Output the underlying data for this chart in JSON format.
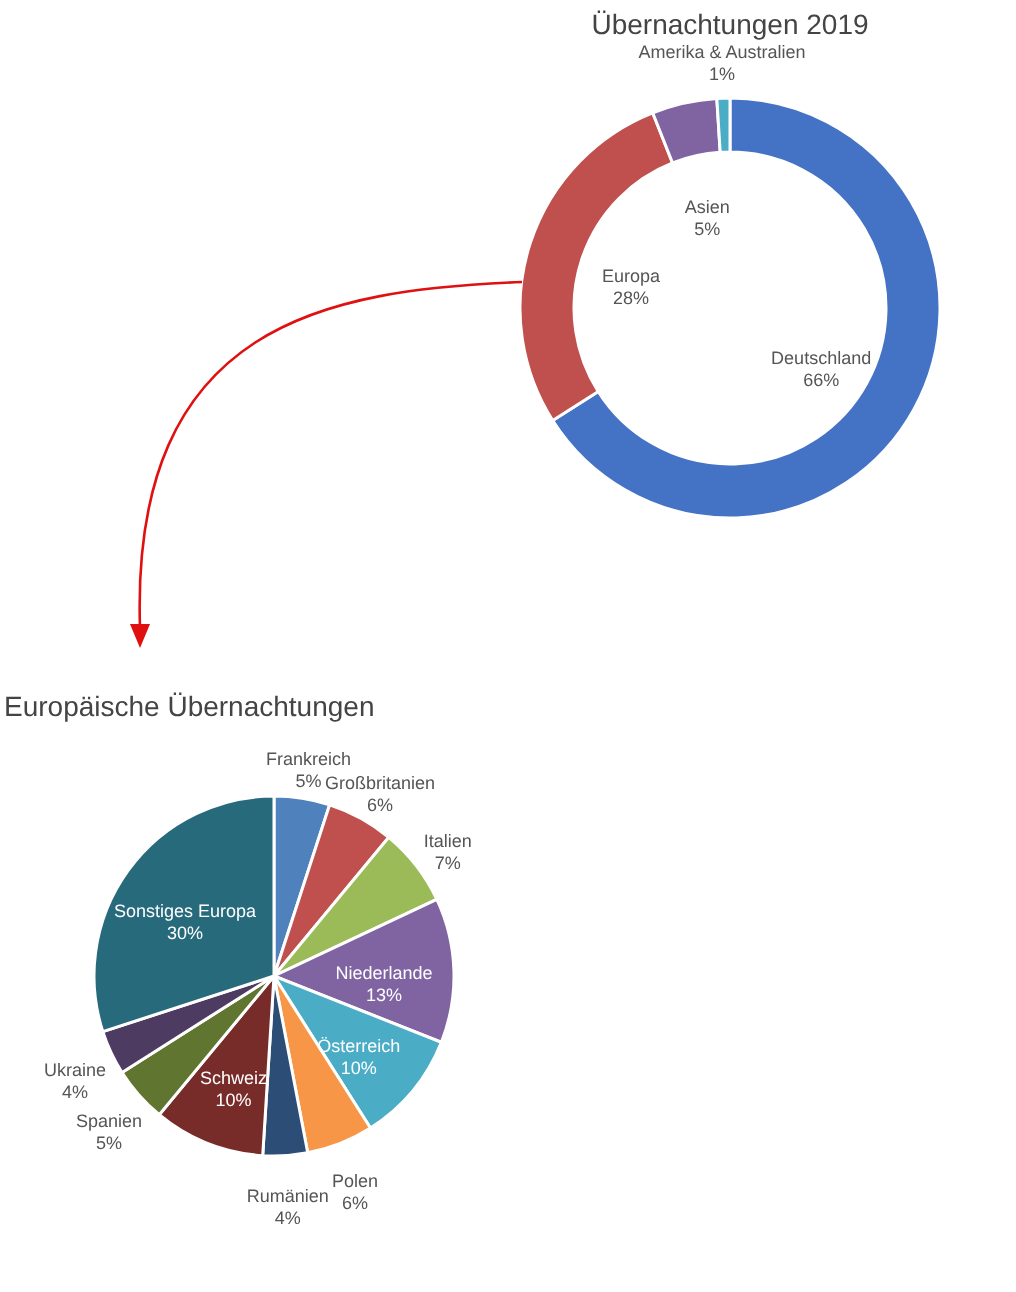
{
  "chart_data": [
    {
      "type": "donut",
      "title": "Übernachtungen 2019",
      "categories": [
        "Deutschland",
        "Europa",
        "Asien",
        "Amerika & Australien"
      ],
      "values": [
        66,
        28,
        5,
        1
      ],
      "colors": [
        "#4472c4",
        "#c0504d",
        "#8064a2",
        "#4bacc6"
      ],
      "value_labels": [
        "66%",
        "28%",
        "5%",
        "1%"
      ]
    },
    {
      "type": "pie",
      "title": "Europäische Übernachtungen",
      "categories": [
        "Frankreich",
        "Großbritanien",
        "Italien",
        "Niederlande",
        "Österreich",
        "Polen",
        "Rumänien",
        "Schweiz",
        "Spanien",
        "Ukraine",
        "Sonstiges Europa"
      ],
      "values": [
        5,
        6,
        7,
        13,
        10,
        6,
        4,
        10,
        5,
        4,
        30
      ],
      "colors": [
        "#4f81bd",
        "#c0504d",
        "#9bbb59",
        "#8064a2",
        "#4bacc6",
        "#f79646",
        "#2c4d75",
        "#772c2a",
        "#5f7530",
        "#4d3b62",
        "#276a7c"
      ],
      "value_labels": [
        "5%",
        "6%",
        "7%",
        "13%",
        "10%",
        "6%",
        "4%",
        "10%",
        "5%",
        "4%",
        "30%"
      ]
    }
  ]
}
